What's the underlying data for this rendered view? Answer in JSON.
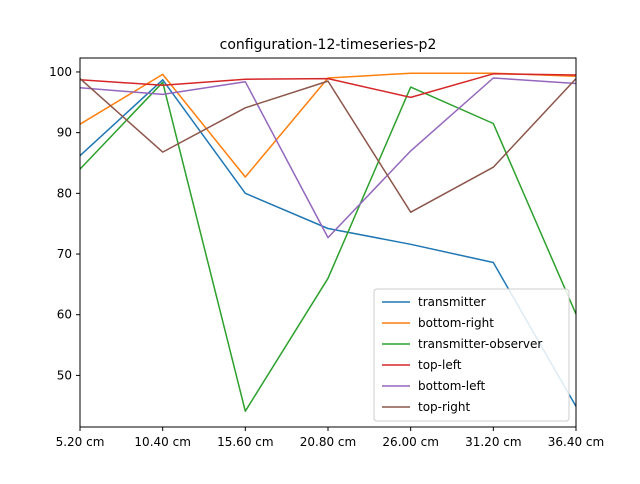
{
  "chart_data": {
    "type": "line",
    "title": "configuration-12-timeseries-p2",
    "xlabel": "",
    "ylabel": "",
    "x": [
      "5.20 cm",
      "10.40 cm",
      "15.60 cm",
      "20.80 cm",
      "26.00 cm",
      "31.20 cm",
      "36.40 cm"
    ],
    "y_ticks": [
      50,
      60,
      70,
      80,
      90,
      100
    ],
    "ylim": [
      41.5,
      102.3
    ],
    "grid": false,
    "legend_position": "lower right",
    "series": [
      {
        "name": "transmitter",
        "color": "#1f77b4",
        "values": [
          86.2,
          98.7,
          80.0,
          74.2,
          71.6,
          68.6,
          44.9
        ]
      },
      {
        "name": "bottom-right",
        "color": "#ff7f0e",
        "values": [
          91.4,
          99.6,
          82.7,
          99.0,
          99.8,
          99.8,
          99.3
        ]
      },
      {
        "name": "transmitter-observer",
        "color": "#2ca02c",
        "values": [
          84.0,
          98.3,
          44.1,
          66.0,
          97.5,
          91.5,
          60.1
        ]
      },
      {
        "name": "top-left",
        "color": "#d62728",
        "values": [
          98.7,
          97.8,
          98.8,
          98.9,
          95.8,
          99.7,
          99.5
        ]
      },
      {
        "name": "bottom-left",
        "color": "#9467bd",
        "values": [
          97.4,
          96.3,
          98.4,
          72.7,
          87.0,
          99.0,
          98.1
        ]
      },
      {
        "name": "top-right",
        "color": "#8c564b",
        "values": [
          98.9,
          86.8,
          94.1,
          98.5,
          76.9,
          84.3,
          98.9
        ]
      }
    ]
  }
}
